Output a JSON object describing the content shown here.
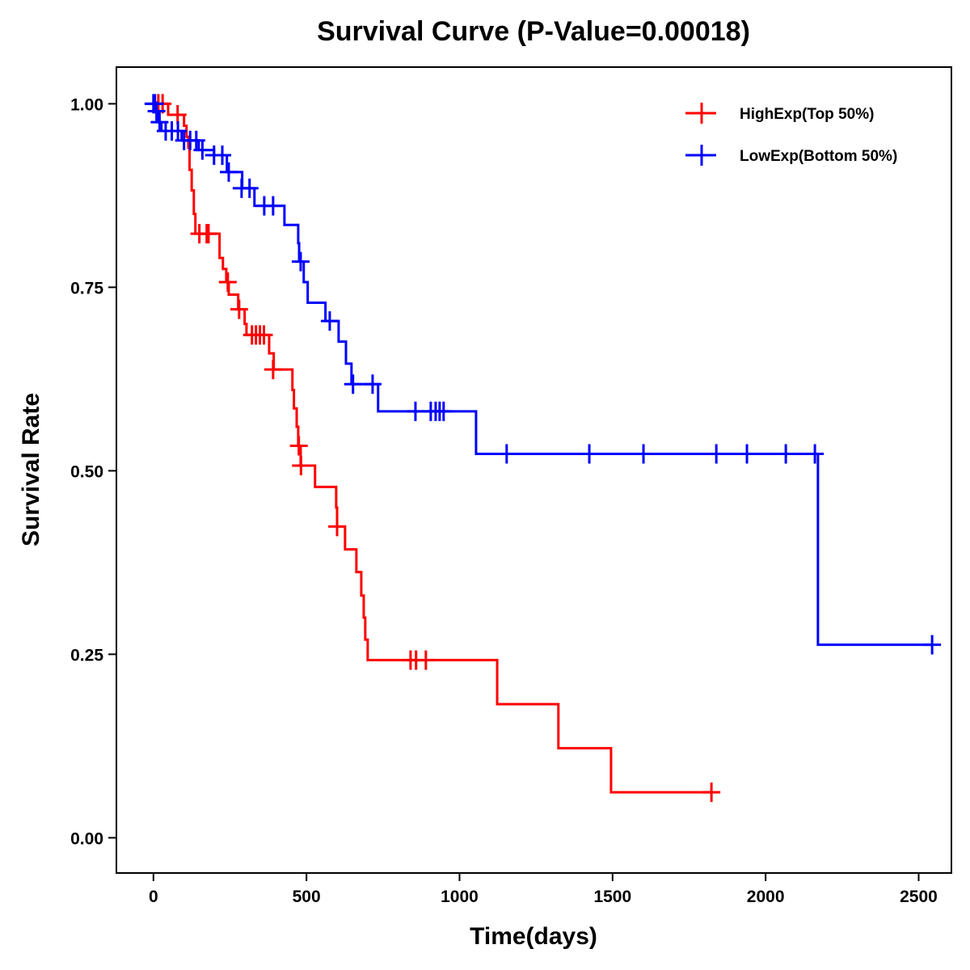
{
  "chart_data": {
    "type": "line",
    "subtype": "kaplan-meier-step",
    "title": "Survival Curve (P-Value=0.00018)",
    "xlabel": "Time(days)",
    "ylabel": "Survival Rate",
    "xlim": [
      -121,
      2607
    ],
    "ylim": [
      -0.048,
      1.05
    ],
    "xticks": [
      0,
      500,
      1000,
      1500,
      2000,
      2500
    ],
    "xtick_labels": [
      "0",
      "500",
      "1000",
      "1500",
      "2000",
      "2500"
    ],
    "yticks": [
      0,
      0.25,
      0.5,
      0.75,
      1.0
    ],
    "ytick_labels": [
      "0.00",
      "0.25",
      "0.50",
      "0.75",
      "1.00"
    ],
    "grid": false,
    "legend_position": "top-right",
    "series": [
      {
        "name": "HighExp(Top 50%)",
        "color": "#ff0000",
        "steps": [
          [
            0,
            1.0
          ],
          [
            48,
            0.985
          ],
          [
            100,
            0.97
          ],
          [
            108,
            0.955
          ],
          [
            114,
            0.94
          ],
          [
            118,
            0.91
          ],
          [
            125,
            0.882
          ],
          [
            132,
            0.85
          ],
          [
            137,
            0.823
          ],
          [
            216,
            0.79
          ],
          [
            227,
            0.775
          ],
          [
            238,
            0.757
          ],
          [
            246,
            0.74
          ],
          [
            277,
            0.72
          ],
          [
            298,
            0.7
          ],
          [
            304,
            0.685
          ],
          [
            378,
            0.66
          ],
          [
            393,
            0.638
          ],
          [
            454,
            0.61
          ],
          [
            459,
            0.585
          ],
          [
            468,
            0.56
          ],
          [
            473,
            0.534
          ],
          [
            481,
            0.507
          ],
          [
            528,
            0.478
          ],
          [
            597,
            0.45
          ],
          [
            600,
            0.424
          ],
          [
            626,
            0.393
          ],
          [
            663,
            0.362
          ],
          [
            679,
            0.33
          ],
          [
            687,
            0.3
          ],
          [
            692,
            0.27
          ],
          [
            700,
            0.242
          ],
          [
            1123,
            0.182
          ],
          [
            1323,
            0.122
          ],
          [
            1495,
            0.062
          ]
        ],
        "end_time": 1823,
        "censored": [
          [
            16,
            1.0
          ],
          [
            30,
            1.0
          ],
          [
            79,
            0.985
          ],
          [
            150,
            0.823
          ],
          [
            174,
            0.823
          ],
          [
            180,
            0.823
          ],
          [
            243,
            0.757
          ],
          [
            280,
            0.72
          ],
          [
            322,
            0.685
          ],
          [
            335,
            0.685
          ],
          [
            348,
            0.685
          ],
          [
            361,
            0.685
          ],
          [
            391,
            0.638
          ],
          [
            475,
            0.534
          ],
          [
            482,
            0.507
          ],
          [
            600,
            0.424
          ],
          [
            840,
            0.242
          ],
          [
            858,
            0.242
          ],
          [
            890,
            0.242
          ],
          [
            1823,
            0.062
          ]
        ]
      },
      {
        "name": "LowExp(Bottom 50%)",
        "color": "#0000ff",
        "steps": [
          [
            0,
            1.0
          ],
          [
            8,
            0.99
          ],
          [
            16,
            0.975
          ],
          [
            26,
            0.963
          ],
          [
            92,
            0.95
          ],
          [
            148,
            0.937
          ],
          [
            198,
            0.93
          ],
          [
            240,
            0.907
          ],
          [
            290,
            0.885
          ],
          [
            330,
            0.861
          ],
          [
            428,
            0.835
          ],
          [
            473,
            0.81
          ],
          [
            476,
            0.785
          ],
          [
            491,
            0.757
          ],
          [
            504,
            0.729
          ],
          [
            562,
            0.704
          ],
          [
            605,
            0.676
          ],
          [
            629,
            0.646
          ],
          [
            647,
            0.618
          ],
          [
            734,
            0.581
          ],
          [
            1054,
            0.523
          ],
          [
            2171,
            0.263
          ]
        ],
        "end_time": 2544,
        "censored": [
          [
            0,
            1.0
          ],
          [
            5,
            1.0
          ],
          [
            10,
            0.99
          ],
          [
            20,
            0.975
          ],
          [
            40,
            0.963
          ],
          [
            60,
            0.963
          ],
          [
            80,
            0.963
          ],
          [
            100,
            0.95
          ],
          [
            120,
            0.95
          ],
          [
            140,
            0.95
          ],
          [
            160,
            0.937
          ],
          [
            198,
            0.93
          ],
          [
            225,
            0.93
          ],
          [
            246,
            0.907
          ],
          [
            288,
            0.885
          ],
          [
            314,
            0.885
          ],
          [
            362,
            0.861
          ],
          [
            391,
            0.861
          ],
          [
            481,
            0.785
          ],
          [
            576,
            0.704
          ],
          [
            652,
            0.618
          ],
          [
            716,
            0.618
          ],
          [
            856,
            0.581
          ],
          [
            906,
            0.581
          ],
          [
            922,
            0.581
          ],
          [
            935,
            0.581
          ],
          [
            948,
            0.581
          ],
          [
            1154,
            0.523
          ],
          [
            1424,
            0.523
          ],
          [
            1601,
            0.523
          ],
          [
            1839,
            0.523
          ],
          [
            1939,
            0.523
          ],
          [
            2066,
            0.523
          ],
          [
            2161,
            0.523
          ],
          [
            2544,
            0.263
          ]
        ]
      }
    ]
  }
}
